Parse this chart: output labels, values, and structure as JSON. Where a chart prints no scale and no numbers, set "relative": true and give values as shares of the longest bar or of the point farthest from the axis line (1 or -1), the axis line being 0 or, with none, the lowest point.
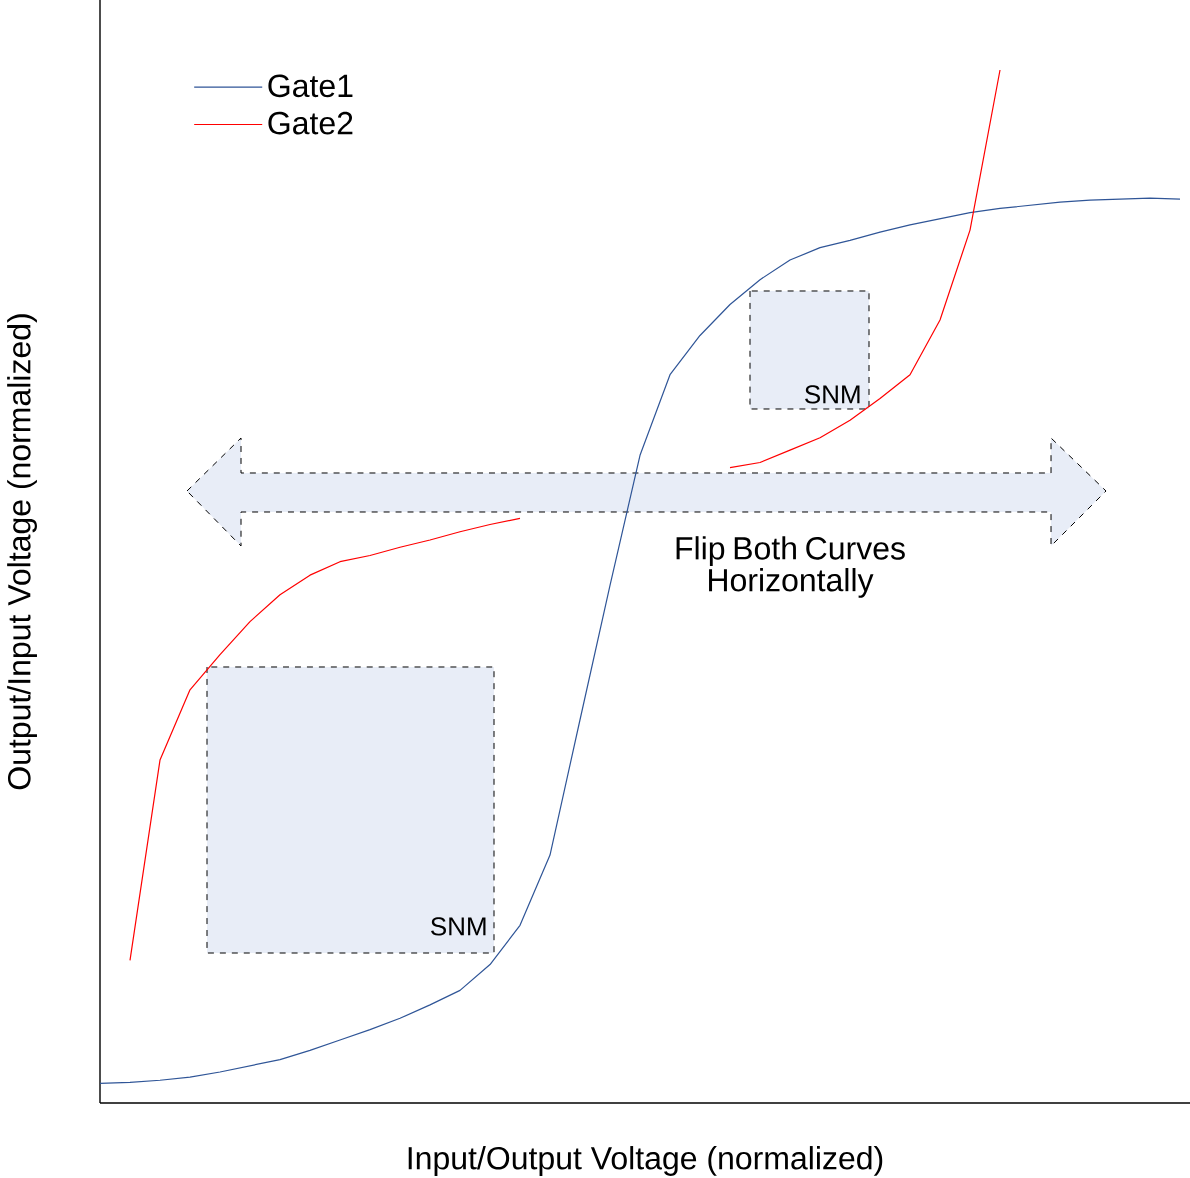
{
  "chart_data": {
    "type": "line",
    "relative": true,
    "xlabel": "Input/Output Voltage (normalized)",
    "ylabel": "Output/Input Voltage (normalized)",
    "legend": "top left",
    "categories": [
      null,
      null,
      null,
      null,
      null,
      null,
      null,
      null,
      null,
      null,
      null,
      null,
      null,
      null,
      null,
      null,
      null,
      null,
      null,
      null,
      null,
      null,
      null,
      null,
      null,
      null,
      null,
      null,
      null,
      null,
      null,
      null,
      null,
      null,
      null,
      null,
      null
    ],
    "series": [
      {
        "name": "Gate1",
        "color": "#2f5597",
        "values": [
          0.019,
          0.02,
          0.022,
          0.025,
          0.03,
          0.036,
          0.042,
          0.051,
          0.061,
          0.071,
          0.082,
          0.095,
          0.109,
          0.134,
          0.172,
          0.24,
          0.371,
          0.501,
          0.627,
          0.705,
          0.743,
          0.773,
          0.797,
          0.816,
          0.828,
          0.835,
          0.843,
          0.85,
          0.856,
          0.862,
          0.866,
          0.869,
          0.872,
          0.874,
          0.875,
          0.876,
          0.875
        ]
      },
      {
        "name": "Gate2",
        "color": "#ff0000",
        "values": [
          null,
          0.138,
          0.332,
          0.4,
          0.434,
          0.466,
          0.492,
          0.511,
          0.524,
          0.53,
          0.538,
          0.545,
          0.553,
          0.56,
          0.566,
          null,
          null,
          null,
          null,
          null,
          null,
          0.615,
          0.62,
          0.632,
          0.644,
          0.661,
          0.682,
          0.705,
          0.758,
          0.845,
          1.0,
          null,
          null,
          null,
          null,
          null,
          null
        ]
      }
    ],
    "annotations": [
      "SNM",
      "SNM",
      "Flip Both Curves Horizontally"
    ]
  }
}
